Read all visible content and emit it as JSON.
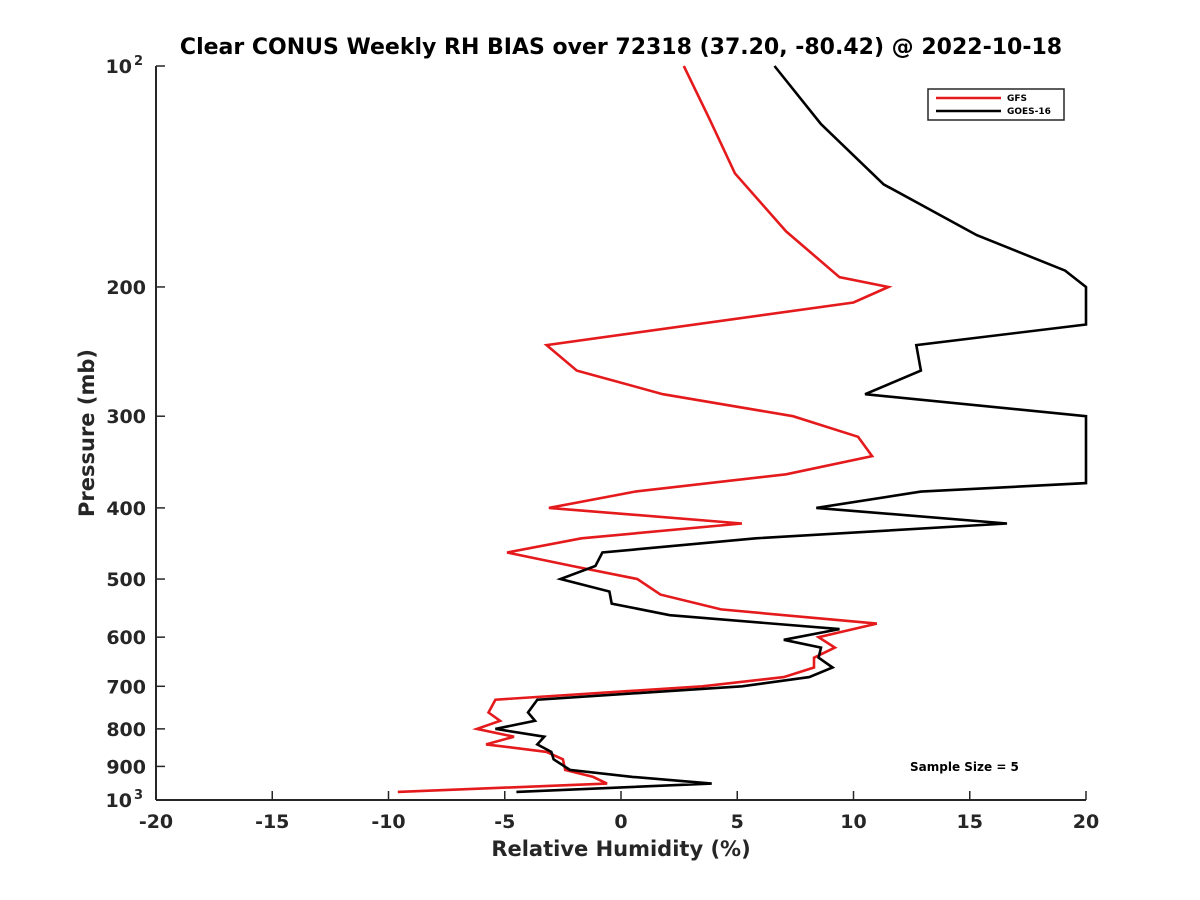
{
  "chart_data": {
    "type": "line",
    "title": "Clear CONUS Weekly RH BIAS over 72318 (37.20, -80.42) @ 2022-10-18",
    "xlabel": "Relative Humidity (%)",
    "ylabel": "Pressure (mb)",
    "xlim": [
      -20,
      20
    ],
    "ylim": [
      100,
      1000
    ],
    "y_scale": "log",
    "y_reversed": true,
    "grid": false,
    "legend_position": "top-right",
    "x_ticks": [
      "-20",
      "-15",
      "-10",
      "-5",
      "0",
      "5",
      "10",
      "15",
      "20"
    ],
    "y_ticks": [
      {
        "value": 100,
        "base": "10",
        "exp": "2"
      },
      {
        "value": 200,
        "label": "200"
      },
      {
        "value": 300,
        "label": "300"
      },
      {
        "value": 400,
        "label": "400"
      },
      {
        "value": 500,
        "label": "500"
      },
      {
        "value": 600,
        "label": "600"
      },
      {
        "value": 700,
        "label": "700"
      },
      {
        "value": 800,
        "label": "800"
      },
      {
        "value": 900,
        "label": "900"
      },
      {
        "value": 1000,
        "base": "10",
        "exp": "3"
      }
    ],
    "series": [
      {
        "name": "GFS",
        "color": "#e41a1c",
        "points": [
          [
            2.7,
            100
          ],
          [
            3.8,
            118
          ],
          [
            4.9,
            140
          ],
          [
            7.1,
            168
          ],
          [
            9.4,
            194
          ],
          [
            11.5,
            200
          ],
          [
            10.0,
            210
          ],
          [
            -3.2,
            240
          ],
          [
            -1.9,
            260
          ],
          [
            1.8,
            280
          ],
          [
            7.4,
            300
          ],
          [
            10.2,
            320
          ],
          [
            10.8,
            340
          ],
          [
            7.1,
            360
          ],
          [
            0.6,
            380
          ],
          [
            -3.1,
            400
          ],
          [
            5.2,
            420
          ],
          [
            -1.7,
            440
          ],
          [
            -4.9,
            460
          ],
          [
            -2.1,
            480
          ],
          [
            0.7,
            500
          ],
          [
            1.7,
            525
          ],
          [
            4.3,
            550
          ],
          [
            11.0,
            575
          ],
          [
            8.5,
            600
          ],
          [
            9.2,
            620
          ],
          [
            8.3,
            640
          ],
          [
            8.3,
            660
          ],
          [
            7.0,
            680
          ],
          [
            3.5,
            700
          ],
          [
            -5.4,
            730
          ],
          [
            -5.7,
            760
          ],
          [
            -5.2,
            780
          ],
          [
            -6.2,
            800
          ],
          [
            -4.6,
            820
          ],
          [
            -5.8,
            840
          ],
          [
            -3.2,
            860
          ],
          [
            -2.5,
            880
          ],
          [
            -2.4,
            910
          ],
          [
            -1.2,
            930
          ],
          [
            -0.6,
            950
          ],
          [
            -9.6,
            975
          ]
        ]
      },
      {
        "name": "GOES-16",
        "color": "#000000",
        "points": [
          [
            6.6,
            100
          ],
          [
            8.6,
            120
          ],
          [
            11.3,
            145
          ],
          [
            15.3,
            170
          ],
          [
            19.1,
            190
          ],
          [
            20.0,
            200
          ],
          [
            20.0,
            225
          ],
          [
            12.7,
            240
          ],
          [
            12.9,
            260
          ],
          [
            10.5,
            280
          ],
          [
            20.0,
            300
          ],
          [
            20.0,
            370
          ],
          [
            12.9,
            380
          ],
          [
            8.4,
            400
          ],
          [
            16.6,
            420
          ],
          [
            5.8,
            440
          ],
          [
            -0.8,
            460
          ],
          [
            -1.1,
            480
          ],
          [
            -2.6,
            500
          ],
          [
            -0.5,
            520
          ],
          [
            -0.4,
            540
          ],
          [
            2.1,
            560
          ],
          [
            9.4,
            585
          ],
          [
            7.0,
            605
          ],
          [
            8.6,
            620
          ],
          [
            8.5,
            640
          ],
          [
            9.1,
            660
          ],
          [
            8.1,
            680
          ],
          [
            5.2,
            700
          ],
          [
            -3.6,
            730
          ],
          [
            -4.0,
            760
          ],
          [
            -3.7,
            780
          ],
          [
            -5.4,
            800
          ],
          [
            -3.3,
            820
          ],
          [
            -3.6,
            840
          ],
          [
            -3.0,
            860
          ],
          [
            -2.9,
            880
          ],
          [
            -2.2,
            910
          ],
          [
            0.5,
            930
          ],
          [
            3.9,
            950
          ],
          [
            -4.5,
            975
          ]
        ]
      }
    ],
    "annotation": "Sample Size = 5"
  }
}
